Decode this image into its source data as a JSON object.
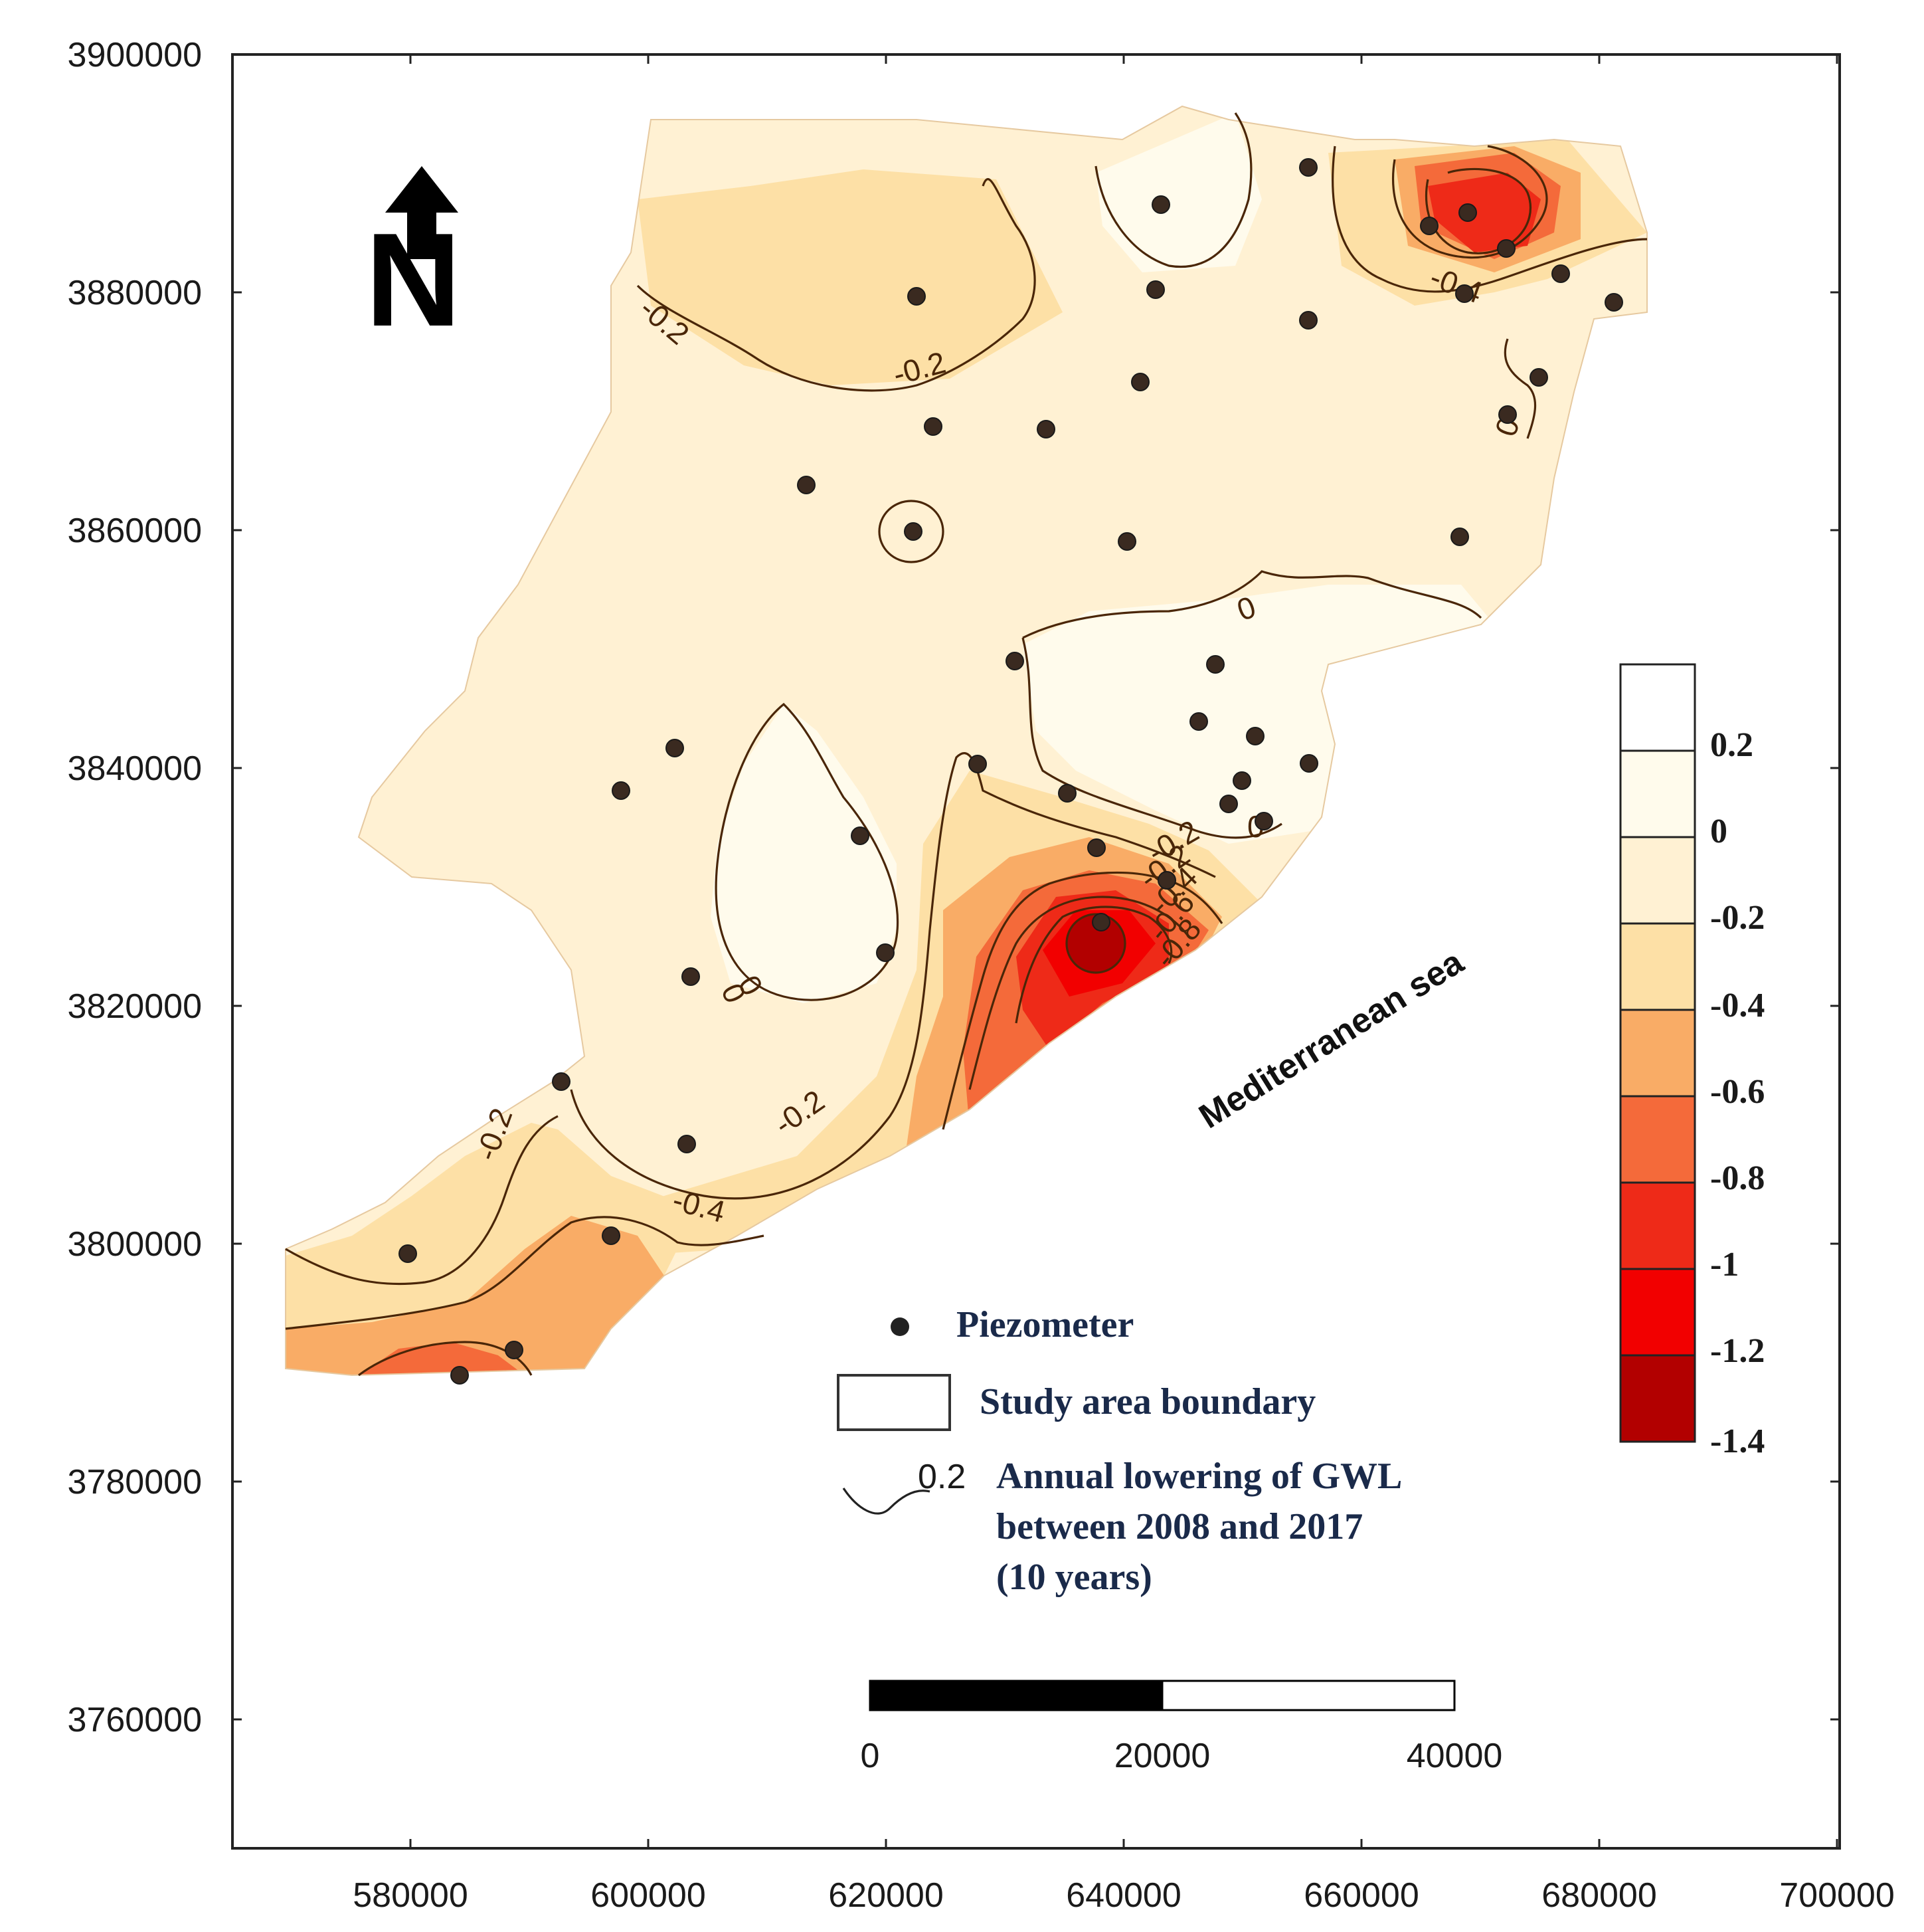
{
  "axes": {
    "x_ticks": [
      "580000",
      "600000",
      "620000",
      "640000",
      "660000",
      "680000",
      "700000"
    ],
    "y_ticks": [
      "3900000",
      "3880000",
      "3860000",
      "3840000",
      "3820000",
      "3800000",
      "3780000",
      "3760000"
    ]
  },
  "north_arrow": {
    "letter": "N",
    "icon": "north-arrow-icon"
  },
  "sea_label": "Mediterranean sea",
  "contour_labels": [
    "-0.2",
    "-0.2",
    "0",
    "0",
    "0",
    "-0.2",
    "0",
    "-0.2",
    "-0.2",
    "-0.4",
    "-0.2",
    "-0.4",
    "-0.6",
    "-0.8",
    "-0.4",
    "0"
  ],
  "color_ramp": {
    "labels": [
      "0.2",
      "0",
      "-0.2",
      "-0.4",
      "-0.6",
      "-0.8",
      "-1",
      "-1.2",
      "-1.4"
    ],
    "colors": [
      "#ffffff",
      "#fffbec",
      "#fff1d3",
      "#fde0a6",
      "#f9ac66",
      "#f46a3a",
      "#ee2a18",
      "#f20000",
      "#b20000"
    ]
  },
  "legend": {
    "piezometer_label": "Piezometer",
    "boundary_label": "Study area boundary",
    "contour_sample_value": "0.2",
    "contour_description_lines": [
      "Annual lowering of GWL",
      "between 2008 and 2017",
      "(10 years)"
    ]
  },
  "scale_bar": {
    "labels": [
      "0",
      "20000",
      "40000"
    ]
  },
  "colors": {
    "accent_dark_red": "#b20000",
    "contour_line": "#4a2608"
  }
}
